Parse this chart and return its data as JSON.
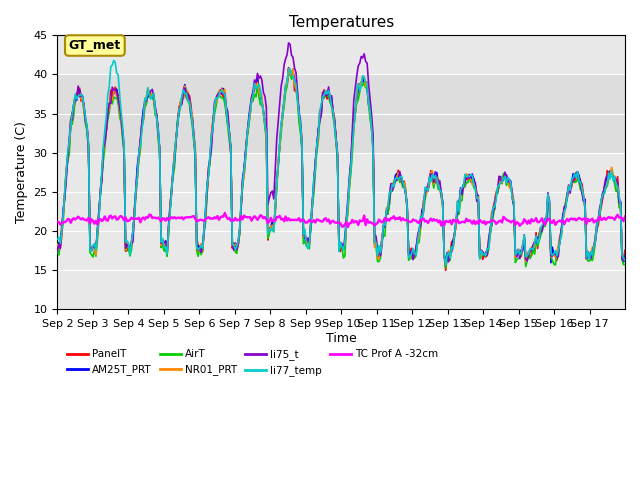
{
  "title": "Temperatures",
  "xlabel": "Time",
  "ylabel": "Temperature (C)",
  "ylim": [
    10,
    45
  ],
  "series_colors": {
    "PanelT": "#ff0000",
    "AM25T_PRT": "#0000ff",
    "AirT": "#00cc00",
    "NR01_PRT": "#ff8800",
    "li75_t": "#8800cc",
    "li77_temp": "#00cccc",
    "TC Prof A -32cm": "#ff00ff"
  },
  "shade_band": [
    30,
    40
  ],
  "shade_color": "#dddddd",
  "bg_color": "#e8e8e8",
  "gt_met_label": "GT_met",
  "gt_met_box_color": "#ffff99",
  "gt_met_border_color": "#aa8800",
  "n_days": 16,
  "x_tick_labels": [
    "Sep 2",
    "Sep 3",
    "Sep 4",
    "Sep 5",
    "Sep 6",
    "Sep 7",
    "Sep 8",
    "Sep 9",
    "Sep 10",
    "Sep 11",
    "Sep 12",
    "Sep 13",
    "Sep 14",
    "Sep 15",
    "Sep 16",
    "Sep 17"
  ],
  "lw": 1.2
}
